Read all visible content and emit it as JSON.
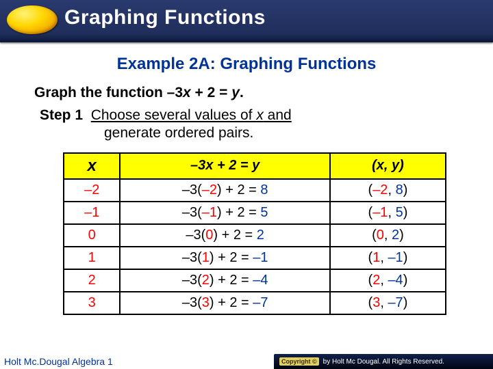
{
  "header": {
    "title": "Graphing Functions"
  },
  "content": {
    "example_title": "Example 2A: Graphing Functions",
    "graph_prefix": "Graph the function ",
    "graph_fn_neg": "–3",
    "graph_fn_x": "x",
    "graph_fn_plus": " + 2 = ",
    "graph_fn_y": "y",
    "graph_period": ".",
    "step_label": "Step 1",
    "step_ud1": "Choose several values of ",
    "step_x": "x",
    "step_ud2": " and",
    "step_line2": "generate ordered pairs."
  },
  "table": {
    "headers": {
      "c1": "x",
      "c2_a": "–3",
      "c2_x": "x",
      "c2_b": " + 2 = ",
      "c2_y": "y",
      "c3_a": "(",
      "c3_x": "x",
      "c3_c": ", ",
      "c3_y": "y",
      "c3_b": ")"
    },
    "rows": [
      {
        "x": "–2",
        "calc_p": "–3(",
        "calc_v": "–2",
        "calc_s": ") + 2 = ",
        "calc_r": "8",
        "pair_a": "(",
        "pair_x": "–2",
        "pair_c": ", ",
        "pair_y": "8",
        "pair_b": ")"
      },
      {
        "x": "–1",
        "calc_p": "–3(",
        "calc_v": "–1",
        "calc_s": ") + 2 = ",
        "calc_r": "5",
        "pair_a": "(",
        "pair_x": "–1",
        "pair_c": ", ",
        "pair_y": "5",
        "pair_b": ")"
      },
      {
        "x": "0",
        "calc_p": "–3(",
        "calc_v": "0",
        "calc_s": ") + 2 = ",
        "calc_r": "2",
        "pair_a": "(",
        "pair_x": "0",
        "pair_c": ", ",
        "pair_y": "2",
        "pair_b": ")"
      },
      {
        "x": "1",
        "calc_p": "–3(",
        "calc_v": "1",
        "calc_s": ") + 2 = ",
        "calc_r": "–1",
        "pair_a": "(",
        "pair_x": "1",
        "pair_c": ", ",
        "pair_y": "–1",
        "pair_b": ")"
      },
      {
        "x": "2",
        "calc_p": "–3(",
        "calc_v": "2",
        "calc_s": ") + 2 = ",
        "calc_r": "–4",
        "pair_a": "(",
        "pair_x": "2",
        "pair_c": ", ",
        "pair_y": "–4",
        "pair_b": ")"
      },
      {
        "x": "3",
        "calc_p": "–3(",
        "calc_v": "3",
        "calc_s": ") + 2 = ",
        "calc_r": "–7",
        "pair_a": "(",
        "pair_x": "3",
        "pair_c": ", ",
        "pair_y": "–7",
        "pair_b": ")"
      }
    ]
  },
  "footer": {
    "left": "Holt Mc.Dougal Algebra 1",
    "badge": "Copyright ©",
    "right": "by Holt Mc Dougal. All Rights Reserved."
  },
  "colors": {
    "header_bg": "#1f2e5a",
    "accent_blue": "#003399",
    "accent_red": "#ff0000",
    "highlight_yellow": "#ffff00",
    "oval_gold": "#ffd700"
  }
}
